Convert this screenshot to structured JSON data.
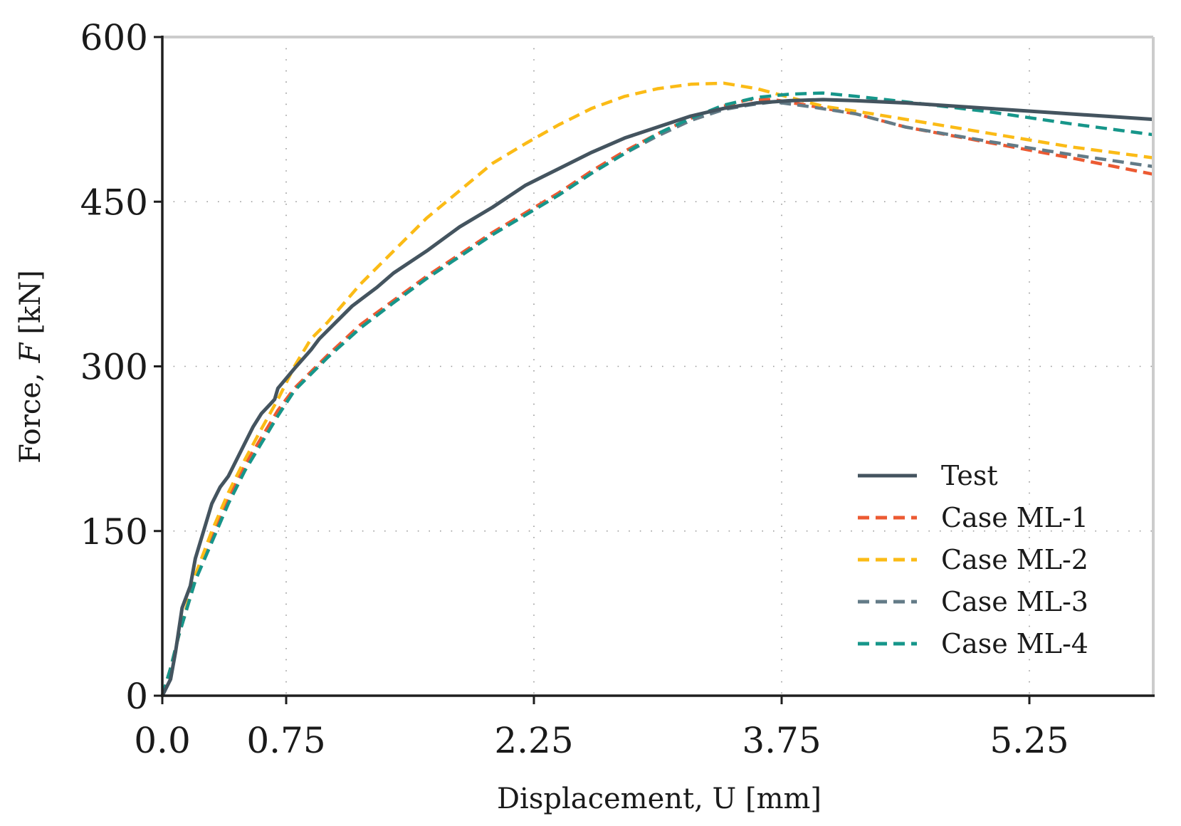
{
  "chart_data": {
    "type": "line",
    "title": "",
    "xlabel": "Displacement, U [mm]",
    "ylabel": "Force, F [kN]",
    "ylabel_prefix": "Force,",
    "ylabel_var": "F",
    "ylabel_unit": "[kN]",
    "xlim": [
      0,
      6.0
    ],
    "ylim": [
      0,
      600
    ],
    "xticks": [
      0.0,
      0.75,
      2.25,
      3.75,
      5.25
    ],
    "xtick_labels": [
      "0.0",
      "0.75",
      "2.25",
      "3.75",
      "5.25"
    ],
    "yticks": [
      0,
      150,
      300,
      450,
      600
    ],
    "ytick_labels": [
      "0",
      "150",
      "300",
      "450",
      "600"
    ],
    "grid": "dotted",
    "legend_position": "lower-right",
    "series": [
      {
        "name": "Test",
        "color": "#44545f",
        "dash": "solid",
        "points": [
          [
            0,
            0
          ],
          [
            0.05,
            15
          ],
          [
            0.08,
            40
          ],
          [
            0.12,
            80
          ],
          [
            0.17,
            100
          ],
          [
            0.2,
            125
          ],
          [
            0.25,
            150
          ],
          [
            0.3,
            175
          ],
          [
            0.35,
            190
          ],
          [
            0.4,
            200
          ],
          [
            0.5,
            230
          ],
          [
            0.55,
            245
          ],
          [
            0.6,
            257
          ],
          [
            0.65,
            265
          ],
          [
            0.68,
            270
          ],
          [
            0.7,
            280
          ],
          [
            0.8,
            298
          ],
          [
            0.9,
            315
          ],
          [
            0.95,
            325
          ],
          [
            1.05,
            340
          ],
          [
            1.15,
            355
          ],
          [
            1.3,
            372
          ],
          [
            1.4,
            385
          ],
          [
            1.6,
            405
          ],
          [
            1.8,
            427
          ],
          [
            2.0,
            445
          ],
          [
            2.2,
            465
          ],
          [
            2.4,
            480
          ],
          [
            2.6,
            495
          ],
          [
            2.8,
            508
          ],
          [
            3.0,
            518
          ],
          [
            3.2,
            528
          ],
          [
            3.4,
            535
          ],
          [
            3.6,
            540
          ],
          [
            3.8,
            542
          ],
          [
            4.0,
            543
          ],
          [
            4.2,
            542
          ],
          [
            4.5,
            540
          ],
          [
            4.8,
            537
          ],
          [
            5.1,
            534
          ],
          [
            5.4,
            531
          ],
          [
            5.7,
            528
          ],
          [
            6.0,
            525
          ]
        ]
      },
      {
        "name": "Case ML-1",
        "color": "#ec5a32",
        "dash": "dashed",
        "points": [
          [
            0,
            0
          ],
          [
            0.05,
            25
          ],
          [
            0.1,
            55
          ],
          [
            0.2,
            105
          ],
          [
            0.3,
            145
          ],
          [
            0.4,
            180
          ],
          [
            0.5,
            210
          ],
          [
            0.6,
            235
          ],
          [
            0.7,
            260
          ],
          [
            0.8,
            280
          ],
          [
            1.0,
            310
          ],
          [
            1.2,
            338
          ],
          [
            1.4,
            360
          ],
          [
            1.6,
            382
          ],
          [
            1.8,
            402
          ],
          [
            2.0,
            422
          ],
          [
            2.2,
            440
          ],
          [
            2.4,
            458
          ],
          [
            2.6,
            478
          ],
          [
            2.8,
            496
          ],
          [
            3.0,
            512
          ],
          [
            3.2,
            526
          ],
          [
            3.4,
            537
          ],
          [
            3.55,
            543
          ],
          [
            3.7,
            543
          ],
          [
            3.9,
            538
          ],
          [
            4.2,
            530
          ],
          [
            4.5,
            518
          ],
          [
            5.0,
            504
          ],
          [
            5.5,
            490
          ],
          [
            6.0,
            475
          ]
        ]
      },
      {
        "name": "Case ML-2",
        "color": "#fbbb16",
        "dash": "dashed",
        "points": [
          [
            0,
            0
          ],
          [
            0.05,
            25
          ],
          [
            0.1,
            55
          ],
          [
            0.2,
            110
          ],
          [
            0.3,
            150
          ],
          [
            0.4,
            185
          ],
          [
            0.5,
            215
          ],
          [
            0.6,
            243
          ],
          [
            0.7,
            270
          ],
          [
            0.8,
            300
          ],
          [
            0.9,
            325
          ],
          [
            1.0,
            340
          ],
          [
            1.2,
            375
          ],
          [
            1.4,
            405
          ],
          [
            1.6,
            435
          ],
          [
            1.8,
            460
          ],
          [
            2.0,
            485
          ],
          [
            2.2,
            503
          ],
          [
            2.4,
            520
          ],
          [
            2.6,
            535
          ],
          [
            2.8,
            546
          ],
          [
            3.0,
            553
          ],
          [
            3.2,
            557
          ],
          [
            3.4,
            558
          ],
          [
            3.6,
            553
          ],
          [
            3.8,
            545
          ],
          [
            4.0,
            537
          ],
          [
            4.3,
            530
          ],
          [
            4.7,
            520
          ],
          [
            5.1,
            510
          ],
          [
            5.5,
            500
          ],
          [
            6.0,
            490
          ]
        ]
      },
      {
        "name": "Case ML-3",
        "color": "#637b87",
        "dash": "dashed",
        "points": [
          [
            0,
            0
          ],
          [
            0.05,
            25
          ],
          [
            0.1,
            55
          ],
          [
            0.2,
            105
          ],
          [
            0.3,
            140
          ],
          [
            0.4,
            175
          ],
          [
            0.5,
            205
          ],
          [
            0.6,
            230
          ],
          [
            0.7,
            255
          ],
          [
            0.8,
            278
          ],
          [
            1.0,
            308
          ],
          [
            1.2,
            335
          ],
          [
            1.4,
            358
          ],
          [
            1.6,
            380
          ],
          [
            1.8,
            400
          ],
          [
            2.0,
            420
          ],
          [
            2.2,
            438
          ],
          [
            2.4,
            456
          ],
          [
            2.6,
            476
          ],
          [
            2.8,
            494
          ],
          [
            3.0,
            510
          ],
          [
            3.2,
            524
          ],
          [
            3.4,
            534
          ],
          [
            3.55,
            538
          ],
          [
            3.7,
            541
          ],
          [
            3.9,
            537
          ],
          [
            4.2,
            530
          ],
          [
            4.5,
            518
          ],
          [
            5.0,
            505
          ],
          [
            5.5,
            493
          ],
          [
            6.0,
            482
          ]
        ]
      },
      {
        "name": "Case ML-4",
        "color": "#16968a",
        "dash": "dashed",
        "points": [
          [
            0,
            0
          ],
          [
            0.05,
            25
          ],
          [
            0.1,
            55
          ],
          [
            0.2,
            105
          ],
          [
            0.3,
            140
          ],
          [
            0.4,
            175
          ],
          [
            0.5,
            205
          ],
          [
            0.6,
            230
          ],
          [
            0.7,
            255
          ],
          [
            0.8,
            278
          ],
          [
            1.0,
            308
          ],
          [
            1.2,
            335
          ],
          [
            1.4,
            358
          ],
          [
            1.6,
            380
          ],
          [
            1.8,
            400
          ],
          [
            2.0,
            420
          ],
          [
            2.2,
            438
          ],
          [
            2.4,
            456
          ],
          [
            2.6,
            476
          ],
          [
            2.8,
            494
          ],
          [
            3.0,
            512
          ],
          [
            3.2,
            526
          ],
          [
            3.4,
            538
          ],
          [
            3.6,
            545
          ],
          [
            3.8,
            548
          ],
          [
            4.0,
            549
          ],
          [
            4.2,
            546
          ],
          [
            4.5,
            541
          ],
          [
            5.0,
            532
          ],
          [
            5.5,
            521
          ],
          [
            6.0,
            511
          ]
        ]
      }
    ]
  }
}
